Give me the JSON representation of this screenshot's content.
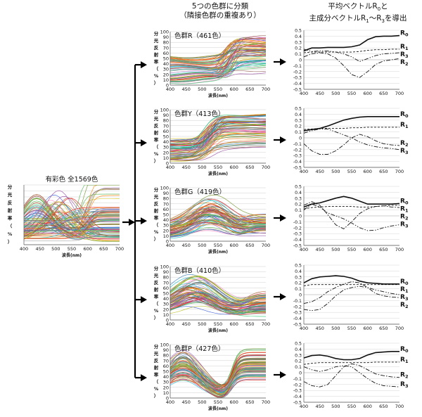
{
  "headers": {
    "middle_line1": "5つの色群に分類",
    "middle_line2": "（隣接色群の重複あり）",
    "right_line1": "平均ベクトルR",
    "right_line1_sub": "0",
    "right_line1_tail": "と",
    "right_line2": "主成分ベクトルR",
    "right_line2_sub1": "1",
    "right_line2_mid": "～R",
    "right_line2_sub2": "3",
    "right_line2_tail": "を導出"
  },
  "spectral_axes": {
    "ylabel_chars": [
      "分",
      "光",
      "反",
      "射",
      "率",
      "（",
      "%",
      "）"
    ],
    "xlabel": "波長(nm)",
    "x_ticks": [
      "400",
      "450",
      "500",
      "550",
      "600",
      "650",
      "700"
    ],
    "y_ticks": [
      "0",
      "10",
      "20",
      "30",
      "40",
      "50",
      "60",
      "70",
      "80",
      "90",
      "100"
    ]
  },
  "vector_axes": {
    "x_ticks": [
      "400",
      "450",
      "500",
      "550",
      "600",
      "650",
      "700"
    ],
    "y_ticks": [
      "0.5",
      "0.4",
      "0.3",
      "0.2",
      "0.1",
      "0",
      "-0.1",
      "-0.2",
      "-0.3",
      "-0.4",
      "-0.5"
    ],
    "y_values": [
      0.5,
      0.4,
      0.3,
      0.2,
      0.1,
      0,
      -0.1,
      -0.2,
      -0.3,
      -0.4,
      -0.5
    ]
  },
  "curve_colors": [
    "#e41a1c",
    "#377eb8",
    "#4daf4a",
    "#984ea3",
    "#ff7f00",
    "#d4c020",
    "#a65628",
    "#f781bf",
    "#999999",
    "#1f9e89",
    "#3b5bdb",
    "#e67e22",
    "#2ecc71",
    "#9b59b6",
    "#17becf",
    "#bcbd22",
    "#8c564b",
    "#d62728",
    "#7f7f7f",
    "#6b8e23"
  ],
  "source": {
    "title": "有彩色 全1569色",
    "curves": 90
  },
  "groups": [
    {
      "id": "R",
      "title": "色群R（461色）",
      "spectral_style": "red",
      "curves": 70,
      "vectors": [
        {
          "name": "R0",
          "label": "R",
          "sub": "0",
          "style": "solid",
          "wl": [
            400,
            425,
            450,
            475,
            500,
            525,
            550,
            575,
            600,
            625,
            650,
            675,
            700
          ],
          "v": [
            0.15,
            0.2,
            0.2,
            0.21,
            0.21,
            0.21,
            0.22,
            0.25,
            0.34,
            0.39,
            0.4,
            0.4,
            0.41
          ]
        },
        {
          "name": "R1",
          "label": "R",
          "sub": "1",
          "style": "dash",
          "wl": [
            400,
            425,
            450,
            475,
            500,
            525,
            550,
            575,
            600,
            625,
            650,
            675,
            700
          ],
          "v": [
            0.12,
            0.13,
            0.13,
            0.13,
            0.13,
            0.13,
            0.13,
            0.14,
            0.16,
            0.17,
            0.17,
            0.18,
            0.18
          ]
        },
        {
          "name": "R2",
          "label": "R",
          "sub": "2",
          "style": "dashdot",
          "wl": [
            400,
            425,
            450,
            475,
            500,
            525,
            550,
            575,
            600,
            625,
            650,
            675,
            700
          ],
          "v": [
            0.05,
            0.1,
            0.12,
            0.1,
            0.03,
            -0.1,
            -0.25,
            -0.3,
            -0.2,
            -0.08,
            -0.02,
            0.0,
            0.02
          ]
        },
        {
          "name": "R3",
          "label": "R",
          "sub": "3",
          "style": "dashdotdot",
          "wl": [
            400,
            425,
            450,
            475,
            500,
            525,
            550,
            575,
            600,
            625,
            650,
            675,
            700
          ],
          "v": [
            0.18,
            0.14,
            0.15,
            0.15,
            0.13,
            0.1,
            0.05,
            -0.03,
            0.02,
            0.07,
            0.1,
            0.11,
            0.12
          ]
        }
      ]
    },
    {
      "id": "Y",
      "title": "色群Y（413色）",
      "spectral_style": "yellow",
      "curves": 70,
      "vectors": [
        {
          "name": "R0",
          "label": "R",
          "sub": "0",
          "style": "solid",
          "wl": [
            400,
            425,
            450,
            475,
            500,
            525,
            550,
            575,
            600,
            625,
            650,
            675,
            700
          ],
          "v": [
            0.12,
            0.14,
            0.16,
            0.2,
            0.25,
            0.3,
            0.33,
            0.35,
            0.36,
            0.36,
            0.36,
            0.36,
            0.36
          ]
        },
        {
          "name": "R1",
          "label": "R",
          "sub": "1",
          "style": "dash",
          "wl": [
            400,
            425,
            450,
            475,
            500,
            525,
            550,
            575,
            600,
            625,
            650,
            675,
            700
          ],
          "v": [
            0.14,
            0.15,
            0.16,
            0.16,
            0.16,
            0.16,
            0.17,
            0.17,
            0.18,
            0.18,
            0.18,
            0.18,
            0.18
          ]
        },
        {
          "name": "R2",
          "label": "R",
          "sub": "2",
          "style": "dashdot",
          "wl": [
            400,
            425,
            450,
            475,
            500,
            525,
            550,
            575,
            600,
            625,
            650,
            675,
            700
          ],
          "v": [
            -0.1,
            -0.22,
            -0.28,
            -0.28,
            -0.22,
            -0.12,
            0.0,
            0.06,
            0.02,
            -0.05,
            -0.1,
            -0.12,
            -0.13
          ]
        },
        {
          "name": "R3",
          "label": "R",
          "sub": "3",
          "style": "dashdotdot",
          "wl": [
            400,
            425,
            450,
            475,
            500,
            525,
            550,
            575,
            600,
            625,
            650,
            675,
            700
          ],
          "v": [
            0.08,
            0.12,
            0.15,
            0.15,
            0.1,
            0.05,
            0.0,
            -0.07,
            -0.12,
            -0.15,
            -0.17,
            -0.18,
            -0.2
          ]
        }
      ]
    },
    {
      "id": "G",
      "title": "色群G（419色）",
      "spectral_style": "green",
      "curves": 70,
      "vectors": [
        {
          "name": "R0",
          "label": "R",
          "sub": "0",
          "style": "solid",
          "wl": [
            400,
            425,
            450,
            475,
            500,
            525,
            550,
            575,
            600,
            625,
            650,
            675,
            700
          ],
          "v": [
            0.15,
            0.2,
            0.22,
            0.26,
            0.3,
            0.33,
            0.3,
            0.25,
            0.2,
            0.2,
            0.2,
            0.2,
            0.21
          ]
        },
        {
          "name": "R1",
          "label": "R",
          "sub": "1",
          "style": "dash",
          "wl": [
            400,
            425,
            450,
            475,
            500,
            525,
            550,
            575,
            600,
            625,
            650,
            675,
            700
          ],
          "v": [
            0.12,
            0.14,
            0.15,
            0.16,
            0.16,
            0.16,
            0.16,
            0.15,
            0.15,
            0.16,
            0.17,
            0.18,
            0.18
          ]
        },
        {
          "name": "R2",
          "label": "R",
          "sub": "2",
          "style": "dashdot",
          "wl": [
            400,
            425,
            450,
            475,
            500,
            525,
            550,
            575,
            600,
            625,
            650,
            675,
            700
          ],
          "v": [
            0.18,
            0.24,
            0.18,
            0.02,
            -0.15,
            -0.22,
            -0.1,
            0.04,
            0.12,
            0.16,
            0.17,
            0.15,
            0.14
          ]
        },
        {
          "name": "R3",
          "label": "R",
          "sub": "3",
          "style": "dashdotdot",
          "wl": [
            400,
            425,
            450,
            475,
            500,
            525,
            550,
            575,
            600,
            625,
            650,
            675,
            700
          ],
          "v": [
            0.1,
            0.2,
            0.15,
            0.05,
            0.0,
            -0.05,
            -0.12,
            -0.2,
            -0.25,
            -0.24,
            -0.2,
            -0.17,
            -0.15
          ]
        }
      ]
    },
    {
      "id": "B",
      "title": "色群B（410色）",
      "spectral_style": "blue",
      "curves": 70,
      "vectors": [
        {
          "name": "R0",
          "label": "R",
          "sub": "0",
          "style": "solid",
          "wl": [
            400,
            425,
            450,
            475,
            500,
            525,
            550,
            575,
            600,
            625,
            650,
            675,
            700
          ],
          "v": [
            0.2,
            0.27,
            0.3,
            0.31,
            0.32,
            0.31,
            0.28,
            0.23,
            0.2,
            0.19,
            0.18,
            0.18,
            0.18
          ]
        },
        {
          "name": "R1",
          "label": "R",
          "sub": "1",
          "style": "dash",
          "wl": [
            400,
            425,
            450,
            475,
            500,
            525,
            550,
            575,
            600,
            625,
            650,
            675,
            700
          ],
          "v": [
            0.15,
            0.17,
            0.17,
            0.17,
            0.17,
            0.17,
            0.17,
            0.17,
            0.17,
            0.17,
            0.17,
            0.17,
            0.17
          ]
        },
        {
          "name": "R2",
          "label": "R",
          "sub": "2",
          "style": "dashdot",
          "wl": [
            400,
            425,
            450,
            475,
            500,
            525,
            550,
            575,
            600,
            625,
            650,
            675,
            700
          ],
          "v": [
            -0.15,
            -0.12,
            -0.05,
            0.05,
            0.12,
            0.18,
            0.22,
            0.2,
            0.12,
            0.02,
            -0.02,
            -0.04,
            -0.05
          ]
        },
        {
          "name": "R3",
          "label": "R",
          "sub": "3",
          "style": "dashdotdot",
          "wl": [
            400,
            425,
            450,
            475,
            500,
            525,
            550,
            575,
            600,
            625,
            650,
            675,
            700
          ],
          "v": [
            -0.25,
            -0.27,
            -0.25,
            -0.15,
            -0.02,
            0.08,
            0.12,
            0.14,
            0.12,
            0.08,
            0.05,
            0.02,
            0.0
          ]
        }
      ]
    },
    {
      "id": "P",
      "title": "色群P（427色）",
      "spectral_style": "purple",
      "curves": 70,
      "vectors": [
        {
          "name": "R0",
          "label": "R",
          "sub": "0",
          "style": "solid",
          "wl": [
            400,
            425,
            450,
            475,
            500,
            525,
            550,
            575,
            600,
            625,
            650,
            675,
            700
          ],
          "v": [
            0.25,
            0.29,
            0.3,
            0.28,
            0.24,
            0.22,
            0.22,
            0.24,
            0.3,
            0.34,
            0.35,
            0.36,
            0.36
          ]
        },
        {
          "name": "R1",
          "label": "R",
          "sub": "1",
          "style": "dash",
          "wl": [
            400,
            425,
            450,
            475,
            500,
            525,
            550,
            575,
            600,
            625,
            650,
            675,
            700
          ],
          "v": [
            0.14,
            0.16,
            0.17,
            0.17,
            0.17,
            0.17,
            0.17,
            0.17,
            0.17,
            0.18,
            0.18,
            0.18,
            0.18
          ]
        },
        {
          "name": "R2",
          "label": "R",
          "sub": "2",
          "style": "dashdot",
          "wl": [
            400,
            425,
            450,
            475,
            500,
            525,
            550,
            575,
            600,
            625,
            650,
            675,
            700
          ],
          "v": [
            -0.15,
            -0.22,
            -0.24,
            -0.2,
            -0.05,
            0.1,
            0.15,
            0.12,
            0.05,
            -0.02,
            -0.05,
            -0.07,
            -0.08
          ]
        },
        {
          "name": "R3",
          "label": "R",
          "sub": "3",
          "style": "dashdotdot",
          "wl": [
            400,
            425,
            450,
            475,
            500,
            525,
            550,
            575,
            600,
            625,
            650,
            675,
            700
          ],
          "v": [
            0.1,
            0.05,
            0.02,
            0.05,
            0.1,
            0.12,
            0.1,
            0.0,
            -0.1,
            -0.18,
            -0.22,
            -0.23,
            -0.24
          ]
        }
      ]
    }
  ]
}
